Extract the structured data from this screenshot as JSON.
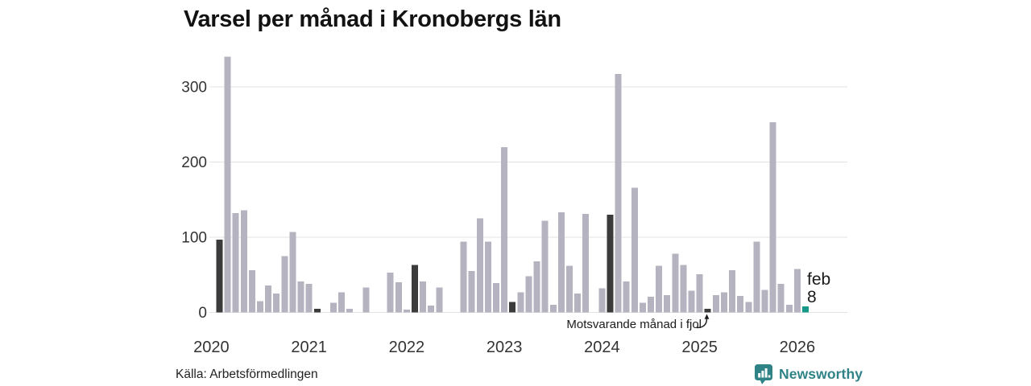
{
  "title": "Varsel per månad i Kronobergs län",
  "source": "Källa: Arbetsförmedlingen",
  "branding": {
    "name": "Newsworthy"
  },
  "annotation": {
    "text": "Motsvarande månad i fjol"
  },
  "current_label": {
    "month": "feb",
    "value": "8"
  },
  "colors": {
    "bar": "#b4b3bf",
    "highlight_prev_year_month": "#3b3b3b",
    "current_month": "#17998a",
    "grid": "#e3e3e3",
    "tick_text": "#333333",
    "brand": "#2f8387"
  },
  "chart_data": {
    "type": "bar",
    "title": "Varsel per månad i Kronobergs län",
    "xlabel": "",
    "ylabel": "",
    "ylim": [
      0,
      350
    ],
    "yticks": [
      "0",
      "100",
      "200",
      "300"
    ],
    "xticks": [
      "2020",
      "2021",
      "2022",
      "2023",
      "2024",
      "2025",
      "2026"
    ],
    "grid": true,
    "legend": "none",
    "columns": [
      "month",
      "value",
      "kind"
    ],
    "values": [
      [
        "2020-02",
        97,
        "fjol"
      ],
      [
        "2020-03",
        340,
        ""
      ],
      [
        "2020-04",
        132,
        ""
      ],
      [
        "2020-05",
        136,
        ""
      ],
      [
        "2020-06",
        56,
        ""
      ],
      [
        "2020-07",
        15,
        ""
      ],
      [
        "2020-08",
        36,
        ""
      ],
      [
        "2020-09",
        25,
        ""
      ],
      [
        "2020-10",
        75,
        ""
      ],
      [
        "2020-11",
        107,
        ""
      ],
      [
        "2020-12",
        41,
        ""
      ],
      [
        "2021-01",
        38,
        ""
      ],
      [
        "2021-02",
        5,
        "fjol"
      ],
      [
        "2021-03",
        0,
        ""
      ],
      [
        "2021-04",
        13,
        ""
      ],
      [
        "2021-05",
        27,
        ""
      ],
      [
        "2021-06",
        5,
        ""
      ],
      [
        "2021-07",
        0,
        ""
      ],
      [
        "2021-08",
        33,
        ""
      ],
      [
        "2021-09",
        0,
        ""
      ],
      [
        "2021-10",
        0,
        ""
      ],
      [
        "2021-11",
        53,
        ""
      ],
      [
        "2021-12",
        40,
        ""
      ],
      [
        "2022-01",
        4,
        ""
      ],
      [
        "2022-02",
        63,
        "fjol"
      ],
      [
        "2022-03",
        41,
        ""
      ],
      [
        "2022-04",
        9,
        ""
      ],
      [
        "2022-05",
        33,
        ""
      ],
      [
        "2022-06",
        0,
        ""
      ],
      [
        "2022-07",
        0,
        ""
      ],
      [
        "2022-08",
        94,
        ""
      ],
      [
        "2022-09",
        55,
        ""
      ],
      [
        "2022-10",
        125,
        ""
      ],
      [
        "2022-11",
        94,
        ""
      ],
      [
        "2022-12",
        39,
        ""
      ],
      [
        "2023-01",
        220,
        ""
      ],
      [
        "2023-02",
        14,
        "fjol"
      ],
      [
        "2023-03",
        27,
        ""
      ],
      [
        "2023-04",
        48,
        ""
      ],
      [
        "2023-05",
        68,
        ""
      ],
      [
        "2023-06",
        122,
        ""
      ],
      [
        "2023-07",
        10,
        ""
      ],
      [
        "2023-08",
        133,
        ""
      ],
      [
        "2023-09",
        62,
        ""
      ],
      [
        "2023-10",
        25,
        ""
      ],
      [
        "2023-11",
        131,
        ""
      ],
      [
        "2023-12",
        0,
        ""
      ],
      [
        "2024-01",
        32,
        ""
      ],
      [
        "2024-02",
        130,
        "fjol"
      ],
      [
        "2024-03",
        317,
        ""
      ],
      [
        "2024-04",
        41,
        ""
      ],
      [
        "2024-05",
        166,
        ""
      ],
      [
        "2024-06",
        13,
        ""
      ],
      [
        "2024-07",
        21,
        ""
      ],
      [
        "2024-08",
        62,
        ""
      ],
      [
        "2024-09",
        23,
        ""
      ],
      [
        "2024-10",
        78,
        ""
      ],
      [
        "2024-11",
        63,
        ""
      ],
      [
        "2024-12",
        29,
        ""
      ],
      [
        "2025-01",
        51,
        ""
      ],
      [
        "2025-02",
        5,
        "fjol"
      ],
      [
        "2025-03",
        23,
        ""
      ],
      [
        "2025-04",
        27,
        ""
      ],
      [
        "2025-05",
        56,
        ""
      ],
      [
        "2025-06",
        22,
        ""
      ],
      [
        "2025-07",
        14,
        ""
      ],
      [
        "2025-08",
        94,
        ""
      ],
      [
        "2025-09",
        30,
        ""
      ],
      [
        "2025-10",
        253,
        ""
      ],
      [
        "2025-11",
        38,
        ""
      ],
      [
        "2025-12",
        10,
        ""
      ],
      [
        "2026-01",
        58,
        ""
      ],
      [
        "2026-02",
        8,
        "current"
      ]
    ]
  }
}
